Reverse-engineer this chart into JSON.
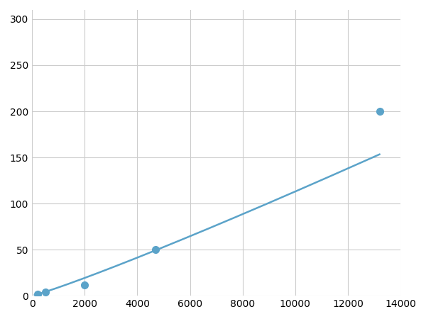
{
  "x_points": [
    200,
    500,
    2000,
    4700,
    13200
  ],
  "y_points": [
    2,
    4,
    12,
    50,
    200
  ],
  "line_color": "#5ba3c9",
  "marker_color": "#5ba3c9",
  "marker_size": 7,
  "xlim": [
    0,
    14000
  ],
  "ylim": [
    0,
    310
  ],
  "xticks": [
    0,
    2000,
    4000,
    6000,
    8000,
    10000,
    12000,
    14000
  ],
  "yticks": [
    0,
    50,
    100,
    150,
    200,
    250,
    300
  ],
  "grid_color": "#cccccc",
  "background_color": "#ffffff",
  "linewidth": 1.8
}
